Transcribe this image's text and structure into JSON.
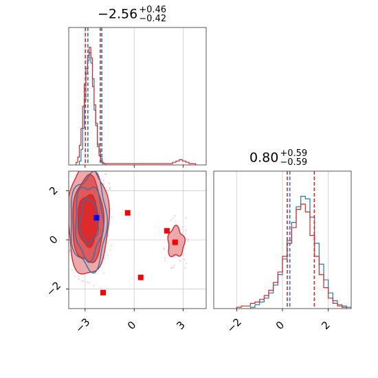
{
  "chart_data": [
    {
      "panel": "top-left",
      "type": "histogram",
      "title": {
        "value": "−2.56",
        "plus": "+0.46",
        "minus": "−0.42"
      },
      "xlim": [
        -4.0,
        4.4
      ],
      "x_ticks": [
        -3,
        0,
        3
      ],
      "grid": true,
      "series": [
        {
          "color": "#1f77b4",
          "x": [
            -3.3,
            -3.2,
            -3.1,
            -3.0,
            -2.9,
            -2.8,
            -2.7,
            -2.6,
            -2.5,
            -2.4,
            -2.3,
            -2.2,
            -2.1,
            -2.0,
            -1.9,
            -1.8,
            -1.7
          ],
          "values": [
            0.03,
            0.12,
            0.28,
            0.5,
            0.7,
            0.8,
            0.86,
            0.78,
            0.66,
            0.42,
            0.3,
            0.14,
            0.1,
            0.05,
            0.02,
            0.01,
            0.0
          ]
        },
        {
          "color": "#d62728",
          "x": [
            -3.5,
            -3.4,
            -3.3,
            -3.2,
            -3.1,
            -3.0,
            -2.9,
            -2.8,
            -2.7,
            -2.6,
            -2.5,
            -2.4,
            -2.3,
            -2.2,
            -2.1,
            -2.0,
            -1.9,
            2.3,
            2.4,
            2.5,
            2.6,
            2.7,
            2.8,
            2.9,
            3.0,
            3.1,
            3.2,
            3.3,
            3.4,
            3.5,
            3.6,
            3.7,
            3.8
          ],
          "values": [
            0.02,
            0.06,
            0.15,
            0.28,
            0.45,
            0.62,
            0.74,
            0.84,
            0.9,
            0.82,
            0.6,
            0.46,
            0.32,
            0.16,
            0.07,
            0.03,
            0.01,
            0.01,
            0.02,
            0.02,
            0.03,
            0.03,
            0.04,
            0.04,
            0.03,
            0.03,
            0.02,
            0.02,
            0.01,
            0.01,
            0.01,
            0.01,
            0.0
          ]
        }
      ],
      "quantile_lines": [
        {
          "color": "#d62728",
          "x": [
            -2.98,
            -2.07
          ]
        },
        {
          "color": "#1f77b4",
          "x": [
            -2.83,
            -1.98
          ]
        }
      ]
    },
    {
      "panel": "bottom-right",
      "type": "histogram",
      "title": {
        "value": "0.80",
        "plus": "+0.59",
        "minus": "−0.59"
      },
      "xlim": [
        -3.0,
        3.0
      ],
      "x_ticks": [
        -2,
        0,
        2
      ],
      "grid": true,
      "series": [
        {
          "color": "#1f77b4",
          "x": [
            -1.3,
            -1.1,
            -0.9,
            -0.7,
            -0.5,
            -0.3,
            -0.1,
            0.1,
            0.3,
            0.5,
            0.7,
            0.9,
            1.1,
            1.3,
            1.5,
            1.7,
            1.9,
            2.1,
            2.3,
            2.5,
            2.7,
            2.9
          ],
          "values": [
            0.01,
            0.03,
            0.05,
            0.08,
            0.12,
            0.18,
            0.26,
            0.38,
            0.52,
            0.66,
            0.78,
            0.86,
            0.84,
            0.7,
            0.5,
            0.34,
            0.22,
            0.12,
            0.06,
            0.03,
            0.02,
            0.01
          ]
        },
        {
          "color": "#d62728",
          "x": [
            -1.9,
            -1.7,
            -1.5,
            -1.3,
            -1.1,
            -0.9,
            -0.7,
            -0.5,
            -0.3,
            -0.1,
            0.1,
            0.3,
            0.5,
            0.7,
            0.9,
            1.1,
            1.3,
            1.5,
            1.7,
            1.9,
            2.1,
            2.3,
            2.5,
            2.7
          ],
          "values": [
            0.01,
            0.02,
            0.02,
            0.04,
            0.05,
            0.07,
            0.1,
            0.14,
            0.2,
            0.28,
            0.4,
            0.5,
            0.62,
            0.76,
            0.8,
            0.74,
            0.56,
            0.4,
            0.26,
            0.16,
            0.08,
            0.04,
            0.02,
            0.01
          ]
        }
      ],
      "quantile_lines": [
        {
          "color": "#d62728",
          "x": [
            0.21,
            1.39
          ]
        },
        {
          "color": "#1f77b4",
          "x": [
            0.32
          ]
        }
      ]
    },
    {
      "panel": "bottom-left",
      "type": "scatter",
      "xlim": [
        -4.0,
        4.4
      ],
      "ylim": [
        -2.8,
        2.8
      ],
      "x_ticks": [
        -3,
        0,
        3
      ],
      "y_ticks": [
        -2,
        0,
        2
      ],
      "grid": true,
      "contours": {
        "fill_colors": [
          "#eba9a9",
          "#e05a5a",
          "#dd2a2a"
        ],
        "red_line_color": "#d62728",
        "blue_line_color": "#1f77b4",
        "main_blob": {
          "cx": -2.82,
          "cy": 0.8,
          "rx": [
            1.25,
            0.95,
            0.62
          ],
          "ry": [
            2.25,
            1.75,
            1.05
          ]
        },
        "side_blob": {
          "cx": 2.55,
          "cy": -0.1,
          "rx": 0.5,
          "ry": 0.6
        }
      },
      "markers_red": [
        [
          -0.4,
          1.1
        ],
        [
          2.0,
          0.37
        ],
        [
          2.5,
          -0.1
        ],
        [
          0.4,
          -1.53
        ],
        [
          -1.9,
          -2.15
        ]
      ],
      "marker_blue": [
        -2.3,
        0.9
      ],
      "marker_red_color": "#ff0000",
      "marker_blue_color": "#0000ff"
    }
  ]
}
